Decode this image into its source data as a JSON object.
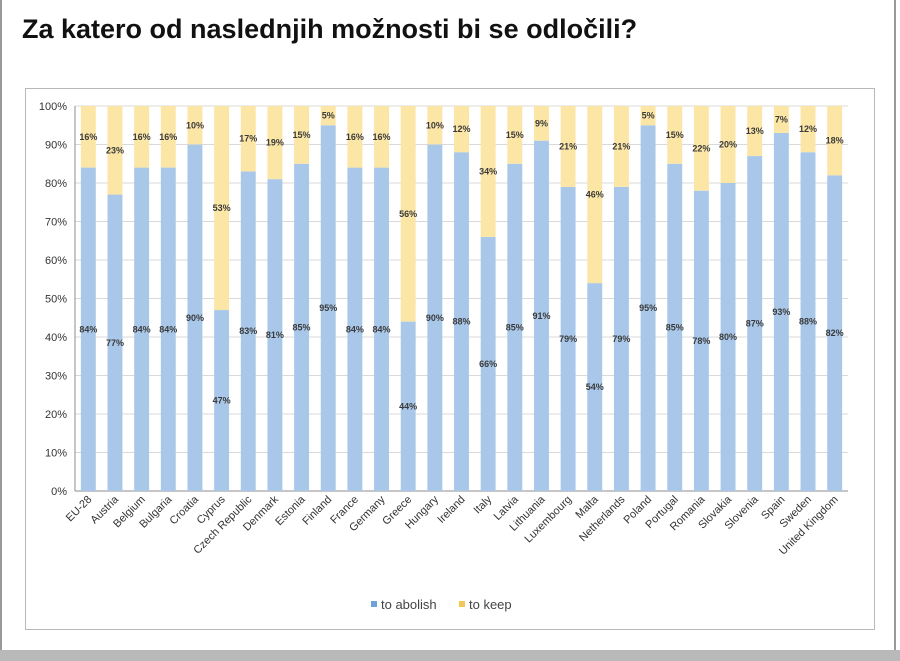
{
  "page": {
    "heading": "Za katero od naslednjih možnosti bi se odločili?"
  },
  "colors": {
    "abolish": "#a9c8e9",
    "keep": "#fbe6a6",
    "grid": "#d9d9d9",
    "axis": "#8c8c8c"
  },
  "chart_data": {
    "type": "bar",
    "stacked": true,
    "title": "",
    "xlabel": "",
    "ylabel": "",
    "ylim": [
      0,
      100
    ],
    "y_ticks": [
      "0%",
      "10%",
      "20%",
      "30%",
      "40%",
      "50%",
      "60%",
      "70%",
      "80%",
      "90%",
      "100%"
    ],
    "grid": true,
    "legend_position": "bottom",
    "categories": [
      "EU-28",
      "Austria",
      "Belgium",
      "Bulgaria",
      "Croatia",
      "Cyprus",
      "Czech Republic",
      "Denmark",
      "Estonia",
      "Finland",
      "France",
      "Germany",
      "Greece",
      "Hungary",
      "Ireland",
      "Italy",
      "Latvia",
      "Lithuania",
      "Luxembourg",
      "Malta",
      "Netherlands",
      "Poland",
      "Portugal",
      "Romania",
      "Slovakia",
      "Slovenia",
      "Spain",
      "Sweden",
      "United Kingdom"
    ],
    "series": [
      {
        "name": "to abolish",
        "values": [
          84,
          77,
          84,
          84,
          90,
          47,
          83,
          81,
          85,
          95,
          84,
          84,
          44,
          90,
          88,
          66,
          85,
          91,
          79,
          54,
          79,
          95,
          85,
          78,
          80,
          87,
          93,
          88,
          82
        ],
        "labels": [
          "84%",
          "77%",
          "84%",
          "84%",
          "90%",
          "47%",
          "83%",
          "81%",
          "85%",
          "95%",
          "84%",
          "84%",
          "44%",
          "90%",
          "88%",
          "66%",
          "85%",
          "91%",
          "79%",
          "54%",
          "79%",
          "95%",
          "85%",
          "78%",
          "80%",
          "87%",
          "93%",
          "88%",
          "82%"
        ]
      },
      {
        "name": "to keep",
        "values": [
          16,
          23,
          16,
          16,
          10,
          53,
          17,
          19,
          15,
          5,
          16,
          16,
          56,
          10,
          12,
          34,
          15,
          9,
          21,
          46,
          21,
          5,
          15,
          22,
          20,
          13,
          7,
          12,
          18
        ],
        "labels": [
          "16%",
          "23%",
          "16%",
          "16%",
          "10%",
          "53%",
          "17%",
          "19%",
          "15%",
          "5%",
          "16%",
          "16%",
          "56%",
          "10%",
          "12%",
          "34%",
          "15%",
          "9%",
          "21%",
          "46%",
          "21%",
          "5%",
          "15%",
          "22%",
          "20%",
          "13%",
          "7%",
          "12%",
          "18%"
        ]
      }
    ]
  }
}
